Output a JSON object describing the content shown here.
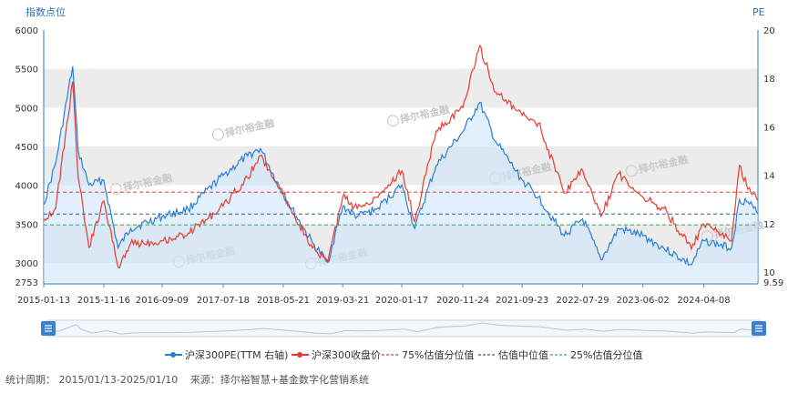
{
  "chart_data": {
    "type": "line",
    "title": "",
    "left_axis_title": "指数点位",
    "right_axis_title": "PE",
    "left_ylim": [
      2753,
      6000
    ],
    "left_ticks": [
      "6000",
      "5500",
      "5000",
      "4500",
      "4000",
      "3500",
      "3000",
      "2753"
    ],
    "right_ylim": [
      9.59,
      20
    ],
    "right_ticks": [
      "20",
      "18",
      "16",
      "14",
      "12",
      "10",
      "9.59"
    ],
    "x_labels": [
      "2015-01-13",
      "2015-11-16",
      "2016-09-09",
      "2017-07-18",
      "2018-05-21",
      "2019-03-21",
      "2020-01-17",
      "2020-11-24",
      "2021-09-23",
      "2022-07-29",
      "2023-06-02",
      "2024-04-08"
    ],
    "x": [
      "2015-01-13",
      "2015-03-15",
      "2015-06-10",
      "2015-07-08",
      "2015-09-01",
      "2015-11-16",
      "2016-01-28",
      "2016-04-01",
      "2016-09-09",
      "2017-01-20",
      "2017-07-18",
      "2017-11-20",
      "2018-01-24",
      "2018-05-21",
      "2018-10-18",
      "2019-01-03",
      "2019-03-21",
      "2019-06-03",
      "2019-09-10",
      "2020-01-17",
      "2020-03-23",
      "2020-07-10",
      "2020-11-24",
      "2021-02-18",
      "2021-05-10",
      "2021-09-23",
      "2021-12-15",
      "2022-04-26",
      "2022-07-29",
      "2022-10-31",
      "2023-01-30",
      "2023-06-02",
      "2023-09-15",
      "2024-02-05",
      "2024-04-08",
      "2024-08-28",
      "2024-10-08",
      "2024-11-20",
      "2025-01-10"
    ],
    "series": [
      {
        "name": "沪深300PE(TTM 右轴)",
        "color": "#2a7fd4",
        "axis": "right",
        "values": [
          12.8,
          14.5,
          18.5,
          15.0,
          13.6,
          13.8,
          11.0,
          11.8,
          12.3,
          12.6,
          14.0,
          14.8,
          15.1,
          13.2,
          11.2,
          10.4,
          12.7,
          12.3,
          12.6,
          13.6,
          11.8,
          14.4,
          15.8,
          17.0,
          15.4,
          13.8,
          13.1,
          11.5,
          12.2,
          10.5,
          11.8,
          11.5,
          11.0,
          10.3,
          11.3,
          11.0,
          13.0,
          12.9,
          12.4
        ]
      },
      {
        "name": "沪深300收盘价",
        "color": "#e83a2e",
        "axis": "left",
        "values": [
          3565,
          3700,
          5335,
          4100,
          3200,
          3800,
          2945,
          3250,
          3280,
          3380,
          3730,
          4100,
          4382,
          3890,
          3190,
          3010,
          3850,
          3700,
          3850,
          4185,
          3530,
          4700,
          5000,
          5800,
          5200,
          4900,
          4800,
          3900,
          4200,
          3600,
          4150,
          3850,
          3700,
          3180,
          3500,
          3280,
          4256,
          3950,
          3800
        ]
      }
    ],
    "reference_lines": [
      {
        "name": "75%估值分位值",
        "axis": "right",
        "value": 13.3,
        "color": "#e83a2e"
      },
      {
        "name": "估值中位值",
        "axis": "right",
        "value": 12.4,
        "color": "#2a5ea8"
      },
      {
        "name": "25%估值分位值",
        "axis": "right",
        "value": 11.95,
        "color": "#3aaa5a"
      }
    ],
    "grid": true,
    "legend_position": "bottom"
  },
  "watermark": "择尔裕金融",
  "footer": {
    "period": "统计周期： 2015/01/13-2025/01/10",
    "source": "来源：择尔裕智慧+基金数字化营销系统"
  },
  "zoom": {
    "left_handle_icon": "drag-handle-icon",
    "right_handle_icon": "drag-handle-icon"
  }
}
